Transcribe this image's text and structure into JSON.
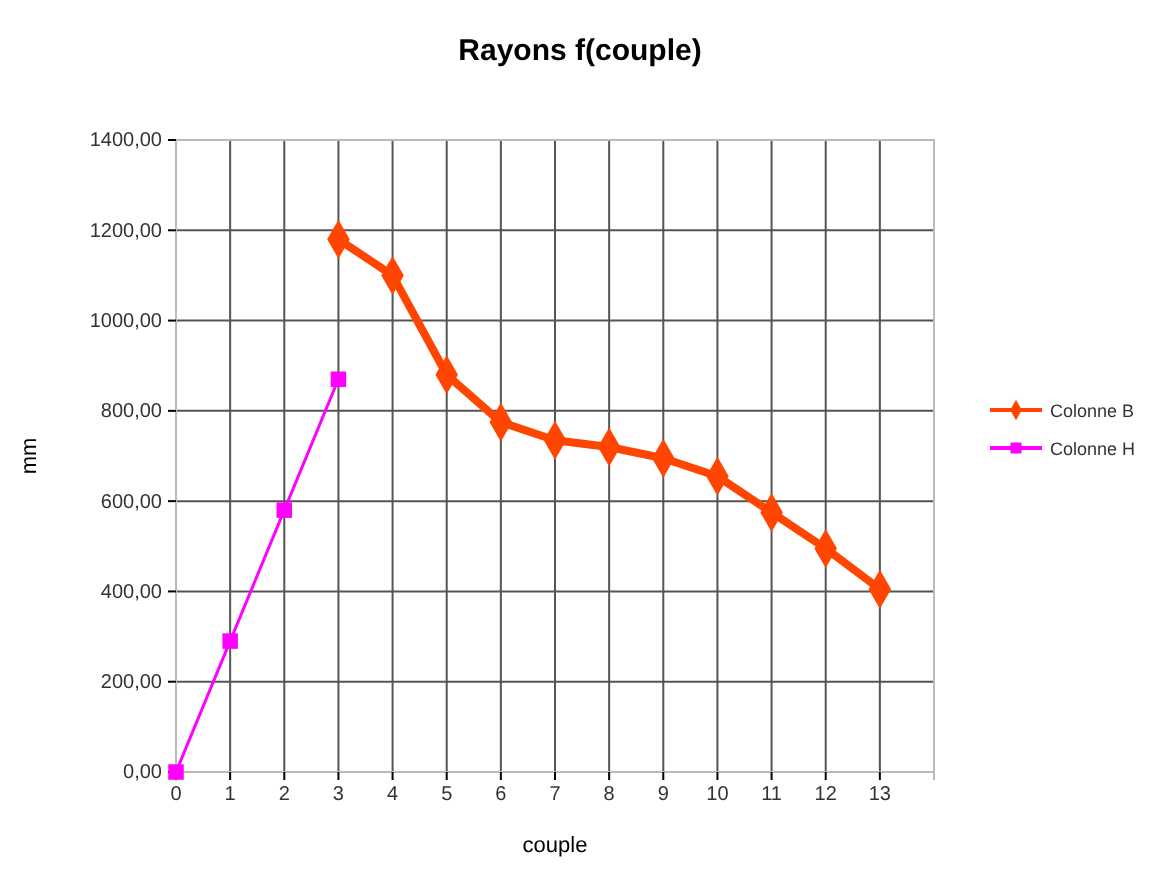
{
  "chart_data": {
    "type": "line",
    "title": "Rayons f(couple)",
    "xlabel": "couple",
    "ylabel": "mm",
    "xlim": [
      0,
      14
    ],
    "xticks": [
      0,
      1,
      2,
      3,
      4,
      5,
      6,
      7,
      8,
      9,
      10,
      11,
      12,
      13
    ],
    "ylim": [
      0,
      1400
    ],
    "yticks": [
      {
        "value": 0,
        "label": "0,00"
      },
      {
        "value": 200,
        "label": "200,00"
      },
      {
        "value": 400,
        "label": "400,00"
      },
      {
        "value": 600,
        "label": "600,00"
      },
      {
        "value": 800,
        "label": "800,00"
      },
      {
        "value": 1000,
        "label": "1000,00"
      },
      {
        "value": 1200,
        "label": "1200,00"
      },
      {
        "value": 1400,
        "label": "1400,00"
      }
    ],
    "grid": true,
    "legend": "right",
    "series": [
      {
        "name": "Colonne B",
        "color": "#ff4500",
        "marker": "diamond",
        "x": [
          3,
          4,
          5,
          6,
          7,
          8,
          9,
          10,
          11,
          12,
          13
        ],
        "values": [
          1180,
          1100,
          880,
          775,
          735,
          720,
          695,
          655,
          575,
          495,
          405
        ]
      },
      {
        "name": "Colonne H",
        "color": "#ff00ff",
        "marker": "square",
        "x": [
          0,
          1,
          2,
          3
        ],
        "values": [
          0,
          290,
          580,
          870
        ]
      }
    ]
  }
}
